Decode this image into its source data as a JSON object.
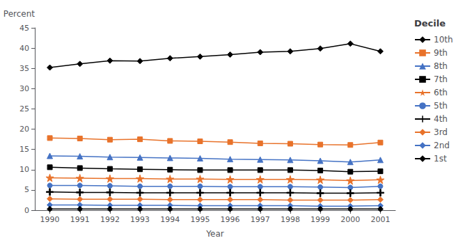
{
  "chart_data": {
    "type": "line",
    "xlabel": "Year",
    "ylabel": "Percent",
    "legend_title": "Decile",
    "x": [
      1990,
      1991,
      1992,
      1993,
      1994,
      1995,
      1996,
      1997,
      1998,
      1999,
      2000,
      2001
    ],
    "xlim": [
      1989.5,
      2001.5
    ],
    "xticks": [
      1990,
      1991,
      1992,
      1993,
      1994,
      1995,
      1996,
      1997,
      1998,
      1999,
      2000,
      2001
    ],
    "ylim": [
      0,
      45
    ],
    "yticks": [
      0,
      5,
      10,
      15,
      20,
      25,
      30,
      35,
      40,
      45
    ],
    "grid": false,
    "legend": "right",
    "series": [
      {
        "name": "10th",
        "color": "#000000",
        "marker": "diamond",
        "values": [
          35.2,
          36.1,
          36.9,
          36.8,
          37.5,
          37.9,
          38.4,
          39.0,
          39.2,
          39.9,
          41.1,
          39.2
        ]
      },
      {
        "name": "9th",
        "color": "#E8722A",
        "marker": "square",
        "values": [
          17.8,
          17.7,
          17.4,
          17.5,
          17.1,
          17.0,
          16.8,
          16.5,
          16.4,
          16.2,
          16.1,
          16.7
        ]
      },
      {
        "name": "8th",
        "color": "#4472C4",
        "marker": "triangle",
        "values": [
          13.4,
          13.3,
          13.1,
          13.0,
          12.9,
          12.8,
          12.6,
          12.5,
          12.4,
          12.2,
          11.9,
          12.4
        ]
      },
      {
        "name": "7th",
        "color": "#000000",
        "marker": "square",
        "values": [
          10.6,
          10.4,
          10.2,
          10.1,
          10.0,
          9.9,
          9.9,
          9.9,
          9.9,
          9.8,
          9.5,
          9.6
        ]
      },
      {
        "name": "6th",
        "color": "#E8722A",
        "marker": "star",
        "values": [
          8.0,
          7.9,
          7.8,
          7.8,
          7.7,
          7.7,
          7.6,
          7.6,
          7.6,
          7.5,
          7.3,
          7.5
        ]
      },
      {
        "name": "5th",
        "color": "#4472C4",
        "marker": "circle",
        "values": [
          6.1,
          6.1,
          6.0,
          5.9,
          5.9,
          5.9,
          5.8,
          5.8,
          5.8,
          5.7,
          5.6,
          5.9
        ]
      },
      {
        "name": "4th",
        "color": "#000000",
        "marker": "plus",
        "values": [
          4.5,
          4.4,
          4.4,
          4.3,
          4.3,
          4.3,
          4.3,
          4.3,
          4.3,
          4.2,
          4.2,
          4.3
        ]
      },
      {
        "name": "3rd",
        "color": "#E8722A",
        "marker": "diamond",
        "values": [
          2.8,
          2.7,
          2.7,
          2.7,
          2.6,
          2.6,
          2.6,
          2.6,
          2.5,
          2.5,
          2.5,
          2.6
        ]
      },
      {
        "name": "2nd",
        "color": "#4472C4",
        "marker": "diamond",
        "values": [
          1.3,
          1.3,
          1.2,
          1.2,
          1.2,
          1.1,
          1.1,
          1.1,
          1.1,
          1.0,
          1.0,
          1.1
        ]
      },
      {
        "name": "1st",
        "color": "#000000",
        "marker": "diamond",
        "values": [
          0.3,
          0.3,
          0.3,
          0.3,
          0.3,
          0.3,
          0.3,
          0.3,
          0.3,
          0.3,
          0.3,
          0.3
        ]
      }
    ]
  }
}
